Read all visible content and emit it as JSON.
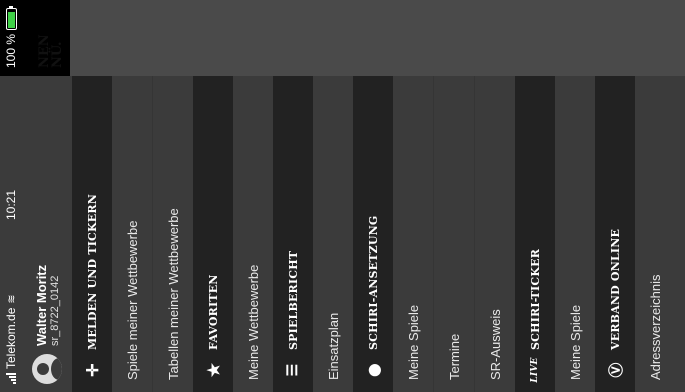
{
  "status": {
    "carrier": "Telekom.de",
    "time": "10:21",
    "battery_text": "100 %"
  },
  "profile": {
    "name": "Walter Moritz",
    "id": "sr_8722_0142"
  },
  "menu": {
    "sections": [
      {
        "title": "MELDEN UND TICKERN",
        "icon": "crosshair-icon",
        "items": [
          "Spiele meiner Wettbewerbe",
          "Tabellen meiner Wettbewerbe"
        ]
      },
      {
        "title": "FAVORITEN",
        "icon": "star-icon",
        "items": [
          "Meine Wettbewerbe"
        ]
      },
      {
        "title": "SPIELBERICHT",
        "icon": "report-icon",
        "items": [
          "Einsatzplan"
        ]
      },
      {
        "title": "SCHIRI-ANSETZUNG",
        "icon": "whistle-icon",
        "items": [
          "Meine Spiele",
          "Termine",
          "SR-Ausweis"
        ]
      },
      {
        "title": "SCHIRI-TICKER",
        "icon": "live-icon",
        "items": [
          "Meine Spiele"
        ]
      },
      {
        "title": "VERBAND ONLINE",
        "icon": "verband-logo-icon",
        "items": [
          "Adressverzeichnis"
        ]
      }
    ]
  },
  "overlay": {
    "line1": "NEN",
    "line2": "NÜ."
  },
  "colors": {
    "battery_fill": "#3fd047",
    "menu_bg": "#3b3b3b",
    "section_bg": "#222222"
  }
}
